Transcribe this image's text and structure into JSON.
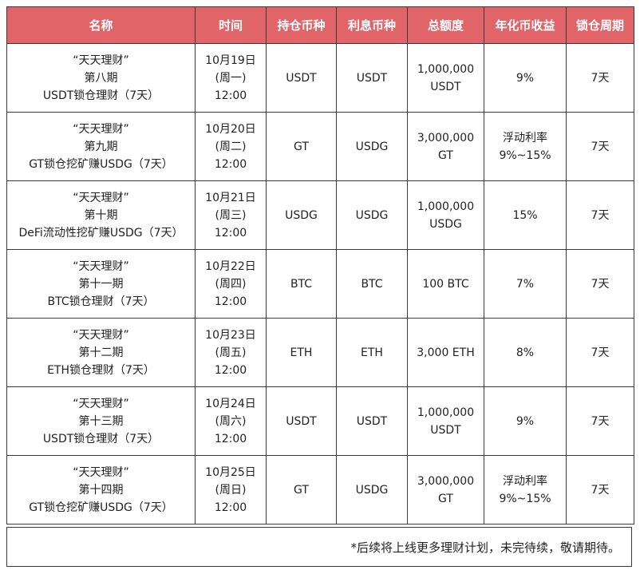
{
  "colors": {
    "header_bg": "#e06468",
    "header_text": "#ffffff",
    "border": "#3a3a3a"
  },
  "table": {
    "headers": [
      "名称",
      "时间",
      "持仓币种",
      "利息币种",
      "总额度",
      "年化币收益",
      "锁仓周期"
    ],
    "rows": [
      {
        "name": [
          "“天天理财”",
          "第八期",
          "USDT锁仓理财（7天）"
        ],
        "time": [
          "10月19日",
          "(周一)",
          "12:00"
        ],
        "hold": "USDT",
        "interest": "USDT",
        "quota": [
          "1,000,000",
          "USDT"
        ],
        "yield": [
          "9%"
        ],
        "period": "7天"
      },
      {
        "name": [
          "“天天理财”",
          "第九期",
          "GT锁仓挖矿赚USDG（7天）"
        ],
        "time": [
          "10月20日",
          "(周二)",
          "12:00"
        ],
        "hold": "GT",
        "interest": "USDG",
        "quota": [
          "3,000,000",
          "GT"
        ],
        "yield": [
          "浮动利率",
          "9%~15%"
        ],
        "period": "7天"
      },
      {
        "name": [
          "“天天理财”",
          "第十期",
          "DeFi流动性挖矿赚USDG（7天）"
        ],
        "time": [
          "10月21日",
          "(周三)",
          "12:00"
        ],
        "hold": "USDG",
        "interest": "USDG",
        "quota": [
          "1,000,000",
          "USDG"
        ],
        "yield": [
          "15%"
        ],
        "period": "7天"
      },
      {
        "name": [
          "“天天理财”",
          "第十一期",
          "BTC锁仓理财（7天）"
        ],
        "time": [
          "10月22日",
          "(周四)",
          "12:00"
        ],
        "hold": "BTC",
        "interest": "BTC",
        "quota": [
          "100 BTC"
        ],
        "yield": [
          "7%"
        ],
        "period": "7天"
      },
      {
        "name": [
          "“天天理财”",
          "第十二期",
          "ETH锁仓理财（7天）"
        ],
        "time": [
          "10月23日",
          "(周五)",
          "12:00"
        ],
        "hold": "ETH",
        "interest": "ETH",
        "quota": [
          "3,000 ETH"
        ],
        "yield": [
          "8%"
        ],
        "period": "7天"
      },
      {
        "name": [
          "“天天理财”",
          "第十三期",
          "USDT锁仓理财（7天）"
        ],
        "time": [
          "10月24日",
          "(周六)",
          "12:00"
        ],
        "hold": "USDT",
        "interest": "USDT",
        "quota": [
          "1,000,000",
          "USDT"
        ],
        "yield": [
          "9%"
        ],
        "period": "7天"
      },
      {
        "name": [
          "“天天理财”",
          "第十四期",
          "GT锁仓挖矿赚USDG（7天）"
        ],
        "time": [
          "10月25日",
          "(周日)",
          "12:00"
        ],
        "hold": "GT",
        "interest": "USDG",
        "quota": [
          "3,000,000",
          "GT"
        ],
        "yield": [
          "浮动利率",
          "9%~15%"
        ],
        "period": "7天"
      }
    ]
  },
  "footer": {
    "note": "*后续将上线更多理财计划，未完待续，敬请期待。"
  }
}
